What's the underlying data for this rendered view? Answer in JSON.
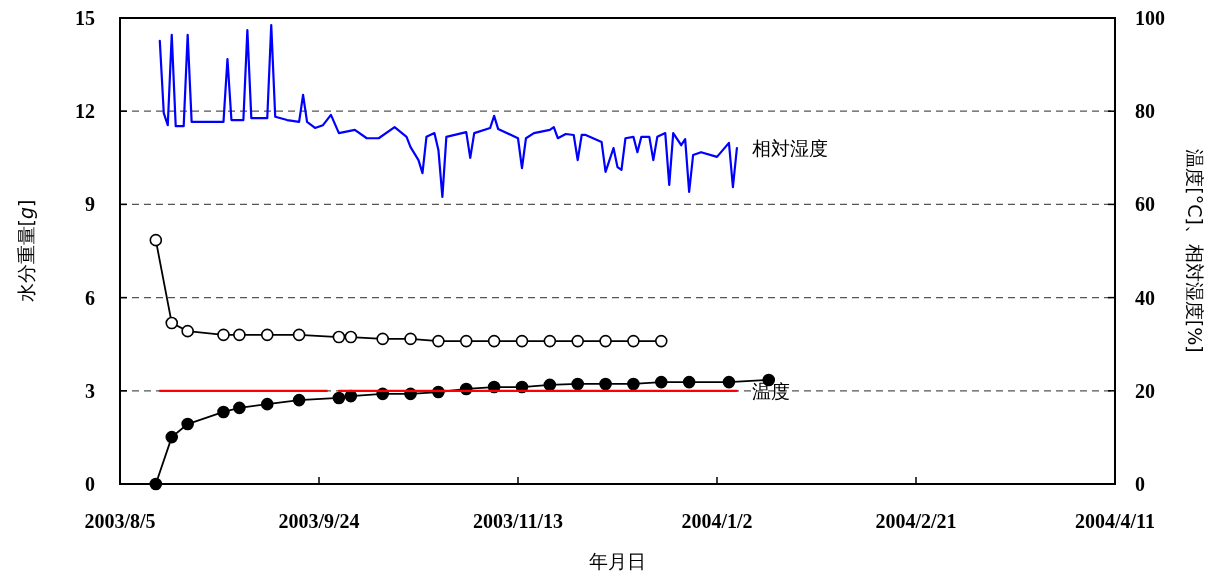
{
  "chart_data": {
    "type": "line",
    "xlabel": "年月日",
    "ylabel": "水分重量[*g*]",
    "y2label": "温度[°C]、相対湿度[%]",
    "xlim": [
      "2003-08-05",
      "2004-04-11"
    ],
    "xticks": [
      {
        "value": "2003-08-05",
        "label": "2003/8/5"
      },
      {
        "value": "2003-09-24",
        "label": "2003/9/24"
      },
      {
        "value": "2003-11-13",
        "label": "2003/11/13"
      },
      {
        "value": "2004-01-02",
        "label": "2004/1/2"
      },
      {
        "value": "2004-02-21",
        "label": "2004/2/21"
      },
      {
        "value": "2004-04-11",
        "label": "2004/4/11"
      }
    ],
    "ylim": [
      0,
      15
    ],
    "yticks": [
      0,
      3,
      6,
      9,
      12,
      15
    ],
    "y2lim": [
      0,
      100
    ],
    "y2ticks": [
      0,
      20,
      40,
      60,
      80,
      100
    ],
    "grid": "y",
    "series": [
      {
        "marker": "circle",
        "color": "#ffffff",
        "x": [
          "2003-08-14",
          "2003-08-18",
          "2003-08-22",
          "2003-08-31",
          "2003-09-04",
          "2003-09-11",
          "2003-09-19",
          "2003-09-29",
          "2003-10-02",
          "2003-10-10",
          "2003-10-17",
          "2003-10-24",
          "2003-10-31",
          "2003-11-07",
          "2003-11-14",
          "2003-11-21",
          "2003-11-28",
          "2003-12-05",
          "2003-12-12",
          "2003-12-19"
        ],
        "values": [
          7.85,
          5.18,
          4.92,
          4.8,
          4.8,
          4.8,
          4.8,
          4.73,
          4.73,
          4.67,
          4.67,
          4.6,
          4.6,
          4.6,
          4.6,
          4.6,
          4.6,
          4.6,
          4.6,
          4.6
        ]
      },
      {
        "marker": "circle",
        "color": "#000000",
        "x": [
          "2003-08-14",
          "2003-08-18",
          "2003-08-22",
          "2003-08-31",
          "2003-09-04",
          "2003-09-11",
          "2003-09-19",
          "2003-09-29",
          "2003-10-02",
          "2003-10-10",
          "2003-10-17",
          "2003-10-24",
          "2003-10-31",
          "2003-11-07",
          "2003-11-14",
          "2003-11-21",
          "2003-11-28",
          "2003-12-05",
          "2003-12-12",
          "2003-12-19",
          "2003-12-26",
          "2004-01-05",
          "2004-01-15"
        ],
        "values": [
          0,
          1.51,
          1.93,
          2.32,
          2.45,
          2.57,
          2.7,
          2.77,
          2.83,
          2.9,
          2.9,
          2.96,
          3.06,
          3.12,
          3.12,
          3.19,
          3.22,
          3.22,
          3.22,
          3.28,
          3.28,
          3.28,
          3.35
        ]
      },
      {
        "marker": "none",
        "axis": "y2",
        "color": "#ff0000",
        "x": [
          "2003-08-15",
          "2003-09-26"
        ],
        "values": [
          20,
          20
        ]
      },
      {
        "marker": "none",
        "axis": "y2",
        "name": "温度",
        "color": "#ff0000",
        "x": [
          "2003-09-29",
          "2004-01-07"
        ],
        "values": [
          20,
          20
        ]
      },
      {
        "marker": "none",
        "axis": "y2",
        "name": "相対湿度",
        "color": "#0000ff",
        "x": [
          "2003-08-15",
          "2003-08-16",
          "2003-08-17",
          "2003-08-18",
          "2003-08-19",
          "2003-08-21",
          "2003-08-22",
          "2003-08-23",
          "2003-08-31",
          "2003-09-01",
          "2003-09-02",
          "2003-09-05",
          "2003-09-06",
          "2003-09-07",
          "2003-09-11",
          "2003-09-12",
          "2003-09-13",
          "2003-09-16",
          "2003-09-19",
          "2003-09-20",
          "2003-09-21",
          "2003-09-23",
          "2003-09-25",
          "2003-09-27",
          "2003-09-29",
          "2003-10-03",
          "2003-10-06",
          "2003-10-09",
          "2003-10-13",
          "2003-10-16",
          "2003-10-17",
          "2003-10-19",
          "2003-10-20",
          "2003-10-21",
          "2003-10-23",
          "2003-10-24",
          "2003-10-25",
          "2003-10-26",
          "2003-10-31",
          "2003-11-01",
          "2003-11-02",
          "2003-11-06",
          "2003-11-07",
          "2003-11-08",
          "2003-11-13",
          "2003-11-14",
          "2003-11-15",
          "2003-11-17",
          "2003-11-21",
          "2003-11-22",
          "2003-11-23",
          "2003-11-25",
          "2003-11-27",
          "2003-11-28",
          "2003-11-29",
          "2003-11-30",
          "2003-12-04",
          "2003-12-05",
          "2003-12-07",
          "2003-12-08",
          "2003-12-09",
          "2003-12-10",
          "2003-12-12",
          "2003-12-13",
          "2003-12-14",
          "2003-12-16",
          "2003-12-17",
          "2003-12-18",
          "2003-12-20",
          "2003-12-21",
          "2003-12-22",
          "2003-12-24",
          "2003-12-25",
          "2003-12-26",
          "2003-12-27",
          "2003-12-29",
          "2004-01-02",
          "2004-01-05",
          "2004-01-06",
          "2004-01-07"
        ],
        "values": [
          95.1,
          79.6,
          77.0,
          96.4,
          76.8,
          76.8,
          96.4,
          77.7,
          77.7,
          91.2,
          78.1,
          78.1,
          97.4,
          78.5,
          78.5,
          98.5,
          78.8,
          78.1,
          77.7,
          83.5,
          77.7,
          76.4,
          77.0,
          79.2,
          75.3,
          76.0,
          74.2,
          74.2,
          76.6,
          74.5,
          72.3,
          69.5,
          66.7,
          74.5,
          75.3,
          71.7,
          61.6,
          74.5,
          75.5,
          70.0,
          75.3,
          76.4,
          79.0,
          76.2,
          74.2,
          67.8,
          74.2,
          75.3,
          76.0,
          76.6,
          74.2,
          75.1,
          74.9,
          69.5,
          74.9,
          74.9,
          73.4,
          67.0,
          72.1,
          68.0,
          67.4,
          74.2,
          74.5,
          71.2,
          74.5,
          74.5,
          69.5,
          74.5,
          75.3,
          64.2,
          75.3,
          72.7,
          74.0,
          62.7,
          70.6,
          71.2,
          70.2,
          73.2,
          63.7,
          72.1
        ]
      }
    ]
  }
}
